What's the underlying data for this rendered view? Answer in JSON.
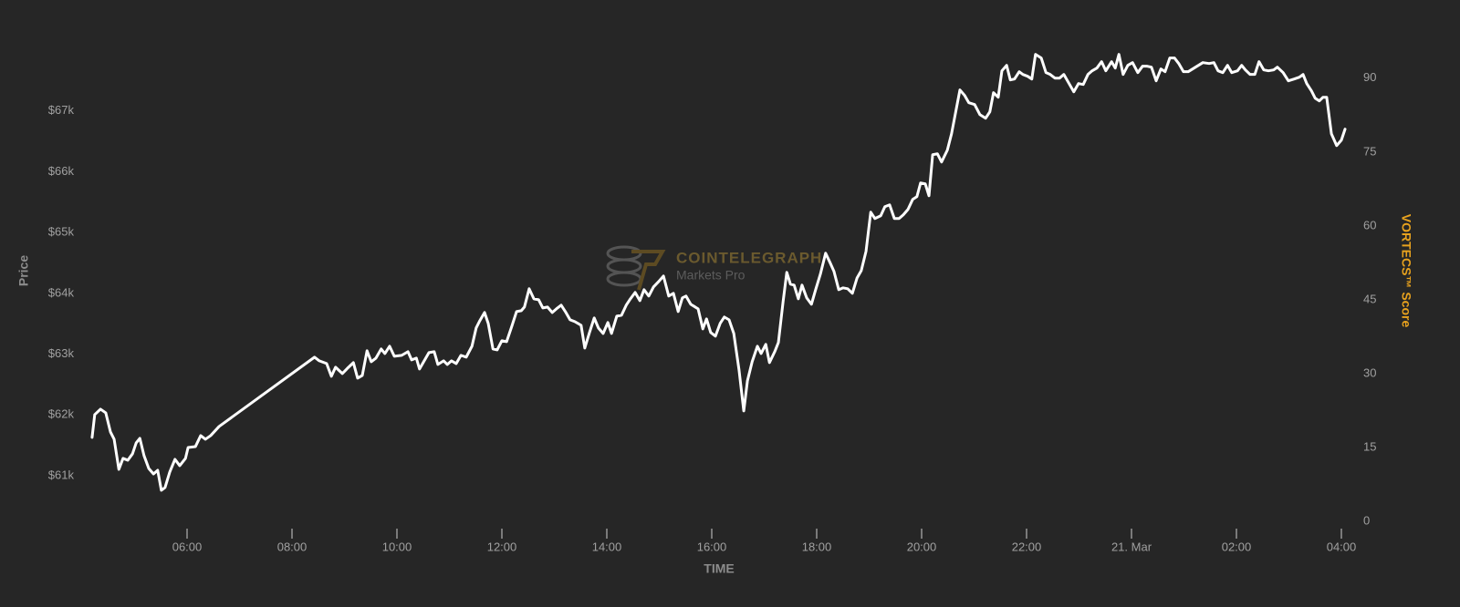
{
  "chart_data": {
    "type": "line",
    "x_label": "TIME",
    "y_label": "Price",
    "y2_label": "VORTECS™ Score",
    "y2_label_color": "#e8a21e",
    "watermark": [
      "COINTELEGRAPH",
      "Markets Pro"
    ],
    "color": "#ffffff",
    "xlim": [
      4,
      28.3
    ],
    "xticks": [
      {
        "value": 6,
        "label": "06:00"
      },
      {
        "value": 8,
        "label": "08:00"
      },
      {
        "value": 10,
        "label": "10:00"
      },
      {
        "value": 12,
        "label": "12:00"
      },
      {
        "value": 14,
        "label": "14:00"
      },
      {
        "value": 16,
        "label": "16:00"
      },
      {
        "value": 18,
        "label": "18:00"
      },
      {
        "value": 20,
        "label": "20:00"
      },
      {
        "value": 22,
        "label": "22:00"
      },
      {
        "value": 24,
        "label": "21. Mar"
      },
      {
        "value": 26,
        "label": "02:00"
      },
      {
        "value": 28,
        "label": "04:00"
      }
    ],
    "ylim": [
      60250,
      68000
    ],
    "yticks": [
      {
        "value": 61000,
        "label": "$61k"
      },
      {
        "value": 62000,
        "label": "$62k"
      },
      {
        "value": 63000,
        "label": "$63k"
      },
      {
        "value": 64000,
        "label": "$64k"
      },
      {
        "value": 65000,
        "label": "$65k"
      },
      {
        "value": 66000,
        "label": "$66k"
      },
      {
        "value": 67000,
        "label": "$67k"
      }
    ],
    "y2lim": [
      0,
      95.7
    ],
    "y2ticks": [
      0,
      15,
      30,
      45,
      60,
      75,
      90
    ],
    "grid": false,
    "x": [
      4.19,
      4.24,
      4.35,
      4.45,
      4.54,
      4.61,
      4.7,
      4.78,
      4.87,
      4.96,
      5.03,
      5.1,
      5.18,
      5.27,
      5.36,
      5.44,
      5.51,
      5.58,
      5.67,
      5.77,
      5.86,
      5.97,
      6.02,
      6.16,
      6.26,
      6.35,
      6.45,
      6.61,
      8.43,
      8.52,
      8.66,
      8.75,
      8.83,
      8.96,
      9.06,
      9.17,
      9.25,
      9.34,
      9.43,
      9.51,
      9.6,
      9.7,
      9.77,
      9.86,
      9.95,
      10.09,
      10.21,
      10.28,
      10.37,
      10.43,
      10.5,
      10.61,
      10.71,
      10.78,
      10.89,
      10.96,
      11.04,
      11.13,
      11.22,
      11.32,
      11.43,
      11.51,
      11.58,
      11.67,
      11.74,
      11.83,
      11.91,
      12.0,
      12.09,
      12.19,
      12.28,
      12.37,
      12.43,
      12.52,
      12.61,
      12.7,
      12.78,
      12.87,
      12.96,
      13.04,
      13.13,
      13.22,
      13.3,
      13.39,
      13.51,
      13.58,
      13.67,
      13.76,
      13.84,
      13.93,
      14.02,
      14.09,
      14.19,
      14.28,
      14.37,
      14.45,
      14.54,
      14.63,
      14.71,
      14.8,
      14.89,
      14.99,
      15.08,
      15.18,
      15.27,
      15.36,
      15.44,
      15.51,
      15.6,
      15.74,
      15.83,
      15.9,
      15.98,
      16.07,
      16.16,
      16.24,
      16.33,
      16.42,
      16.52,
      16.61,
      16.68,
      16.77,
      16.87,
      16.94,
      17.03,
      17.1,
      17.2,
      17.27,
      17.36,
      17.43,
      17.5,
      17.57,
      17.65,
      17.72,
      17.81,
      17.9,
      17.98,
      18.07,
      18.17,
      18.26,
      18.33,
      18.42,
      18.5,
      18.59,
      18.68,
      18.77,
      18.85,
      18.94,
      19.03,
      19.11,
      19.22,
      19.3,
      19.39,
      19.48,
      19.57,
      19.65,
      19.74,
      19.83,
      19.91,
      19.98,
      20.07,
      20.14,
      20.21,
      20.3,
      20.38,
      20.49,
      20.57,
      20.66,
      20.73,
      20.82,
      20.9,
      21.01,
      21.11,
      21.22,
      21.3,
      21.37,
      21.46,
      21.53,
      21.62,
      21.69,
      21.77,
      21.86,
      21.93,
      22.02,
      22.1,
      22.17,
      22.28,
      22.37,
      22.45,
      22.54,
      22.63,
      22.71,
      22.82,
      22.9,
      22.99,
      23.08,
      23.17,
      23.25,
      23.34,
      23.43,
      23.51,
      23.62,
      23.69,
      23.76,
      23.84,
      23.93,
      24.02,
      24.12,
      24.21,
      24.3,
      24.38,
      24.47,
      24.56,
      24.64,
      24.73,
      24.82,
      24.9,
      24.99,
      25.08,
      25.22,
      25.36,
      25.48,
      25.57,
      25.65,
      25.74,
      25.83,
      25.91,
      26.02,
      26.1,
      26.17,
      26.26,
      26.35,
      26.43,
      26.52,
      26.61,
      26.71,
      26.78,
      26.89,
      26.99,
      27.1,
      27.2,
      27.27,
      27.34,
      27.43,
      27.5,
      27.58,
      27.65,
      27.72,
      27.81,
      27.91,
      28.0,
      28.07
    ],
    "values": [
      61630,
      62005,
      62095,
      62035,
      61720,
      61600,
      61105,
      61285,
      61255,
      61360,
      61540,
      61615,
      61330,
      61120,
      61030,
      61090,
      60760,
      60805,
      61060,
      61270,
      61165,
      61285,
      61465,
      61480,
      61660,
      61600,
      61660,
      61810,
      62950,
      62890,
      62845,
      62635,
      62785,
      62680,
      62770,
      62860,
      62605,
      62650,
      63055,
      62875,
      62935,
      63085,
      63010,
      63130,
      62965,
      62980,
      63040,
      62905,
      62935,
      62755,
      62860,
      63025,
      63040,
      62830,
      62890,
      62830,
      62890,
      62845,
      62980,
      62950,
      63130,
      63430,
      63550,
      63685,
      63505,
      63085,
      63070,
      63220,
      63205,
      63460,
      63700,
      63715,
      63775,
      64075,
      63910,
      63895,
      63760,
      63775,
      63685,
      63745,
      63805,
      63685,
      63565,
      63535,
      63475,
      63100,
      63355,
      63595,
      63430,
      63340,
      63520,
      63340,
      63625,
      63640,
      63805,
      63910,
      64015,
      63880,
      64060,
      63955,
      64105,
      64195,
      64285,
      63955,
      64000,
      63700,
      63925,
      63955,
      63820,
      63745,
      63415,
      63580,
      63355,
      63295,
      63505,
      63610,
      63565,
      63340,
      62740,
      62065,
      62560,
      62875,
      63130,
      63010,
      63160,
      62860,
      63040,
      63190,
      63865,
      64345,
      64150,
      64135,
      63910,
      64135,
      63925,
      63820,
      64060,
      64315,
      64660,
      64495,
      64360,
      64060,
      64090,
      64075,
      64000,
      64255,
      64375,
      64690,
      65335,
      65230,
      65275,
      65425,
      65455,
      65230,
      65230,
      65290,
      65380,
      65545,
      65590,
      65815,
      65800,
      65605,
      66280,
      66295,
      66160,
      66355,
      66625,
      67030,
      67345,
      67255,
      67135,
      67105,
      66940,
      66880,
      66985,
      67300,
      67225,
      67660,
      67750,
      67510,
      67525,
      67645,
      67600,
      67570,
      67525,
      67930,
      67870,
      67630,
      67600,
      67540,
      67540,
      67600,
      67435,
      67315,
      67450,
      67435,
      67600,
      67660,
      67705,
      67810,
      67660,
      67810,
      67705,
      67930,
      67600,
      67750,
      67795,
      67630,
      67735,
      67735,
      67720,
      67495,
      67690,
      67645,
      67870,
      67870,
      67780,
      67645,
      67645,
      67720,
      67795,
      67780,
      67795,
      67660,
      67630,
      67750,
      67630,
      67660,
      67750,
      67675,
      67600,
      67600,
      67810,
      67675,
      67660,
      67675,
      67720,
      67630,
      67495,
      67525,
      67555,
      67600,
      67450,
      67330,
      67210,
      67165,
      67225,
      67225,
      66625,
      66430,
      66520,
      66700
    ]
  }
}
